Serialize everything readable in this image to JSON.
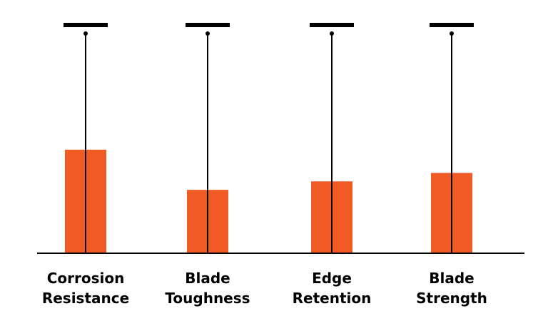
{
  "chart_data": {
    "type": "bar",
    "categories": [
      [
        "Corrosion",
        "Resistance"
      ],
      [
        "Blade",
        "Toughness"
      ],
      [
        "Edge",
        "Retention"
      ],
      [
        "Blade",
        "Strength"
      ]
    ],
    "values": [
      4.9,
      3.0,
      3.4,
      3.8
    ],
    "ylim": [
      0,
      10.8
    ],
    "markers": [
      10.8,
      10.8,
      10.8,
      10.8
    ],
    "grid": false,
    "legend": "none",
    "bar_color": "#f05a24",
    "line_color": "#000000"
  }
}
